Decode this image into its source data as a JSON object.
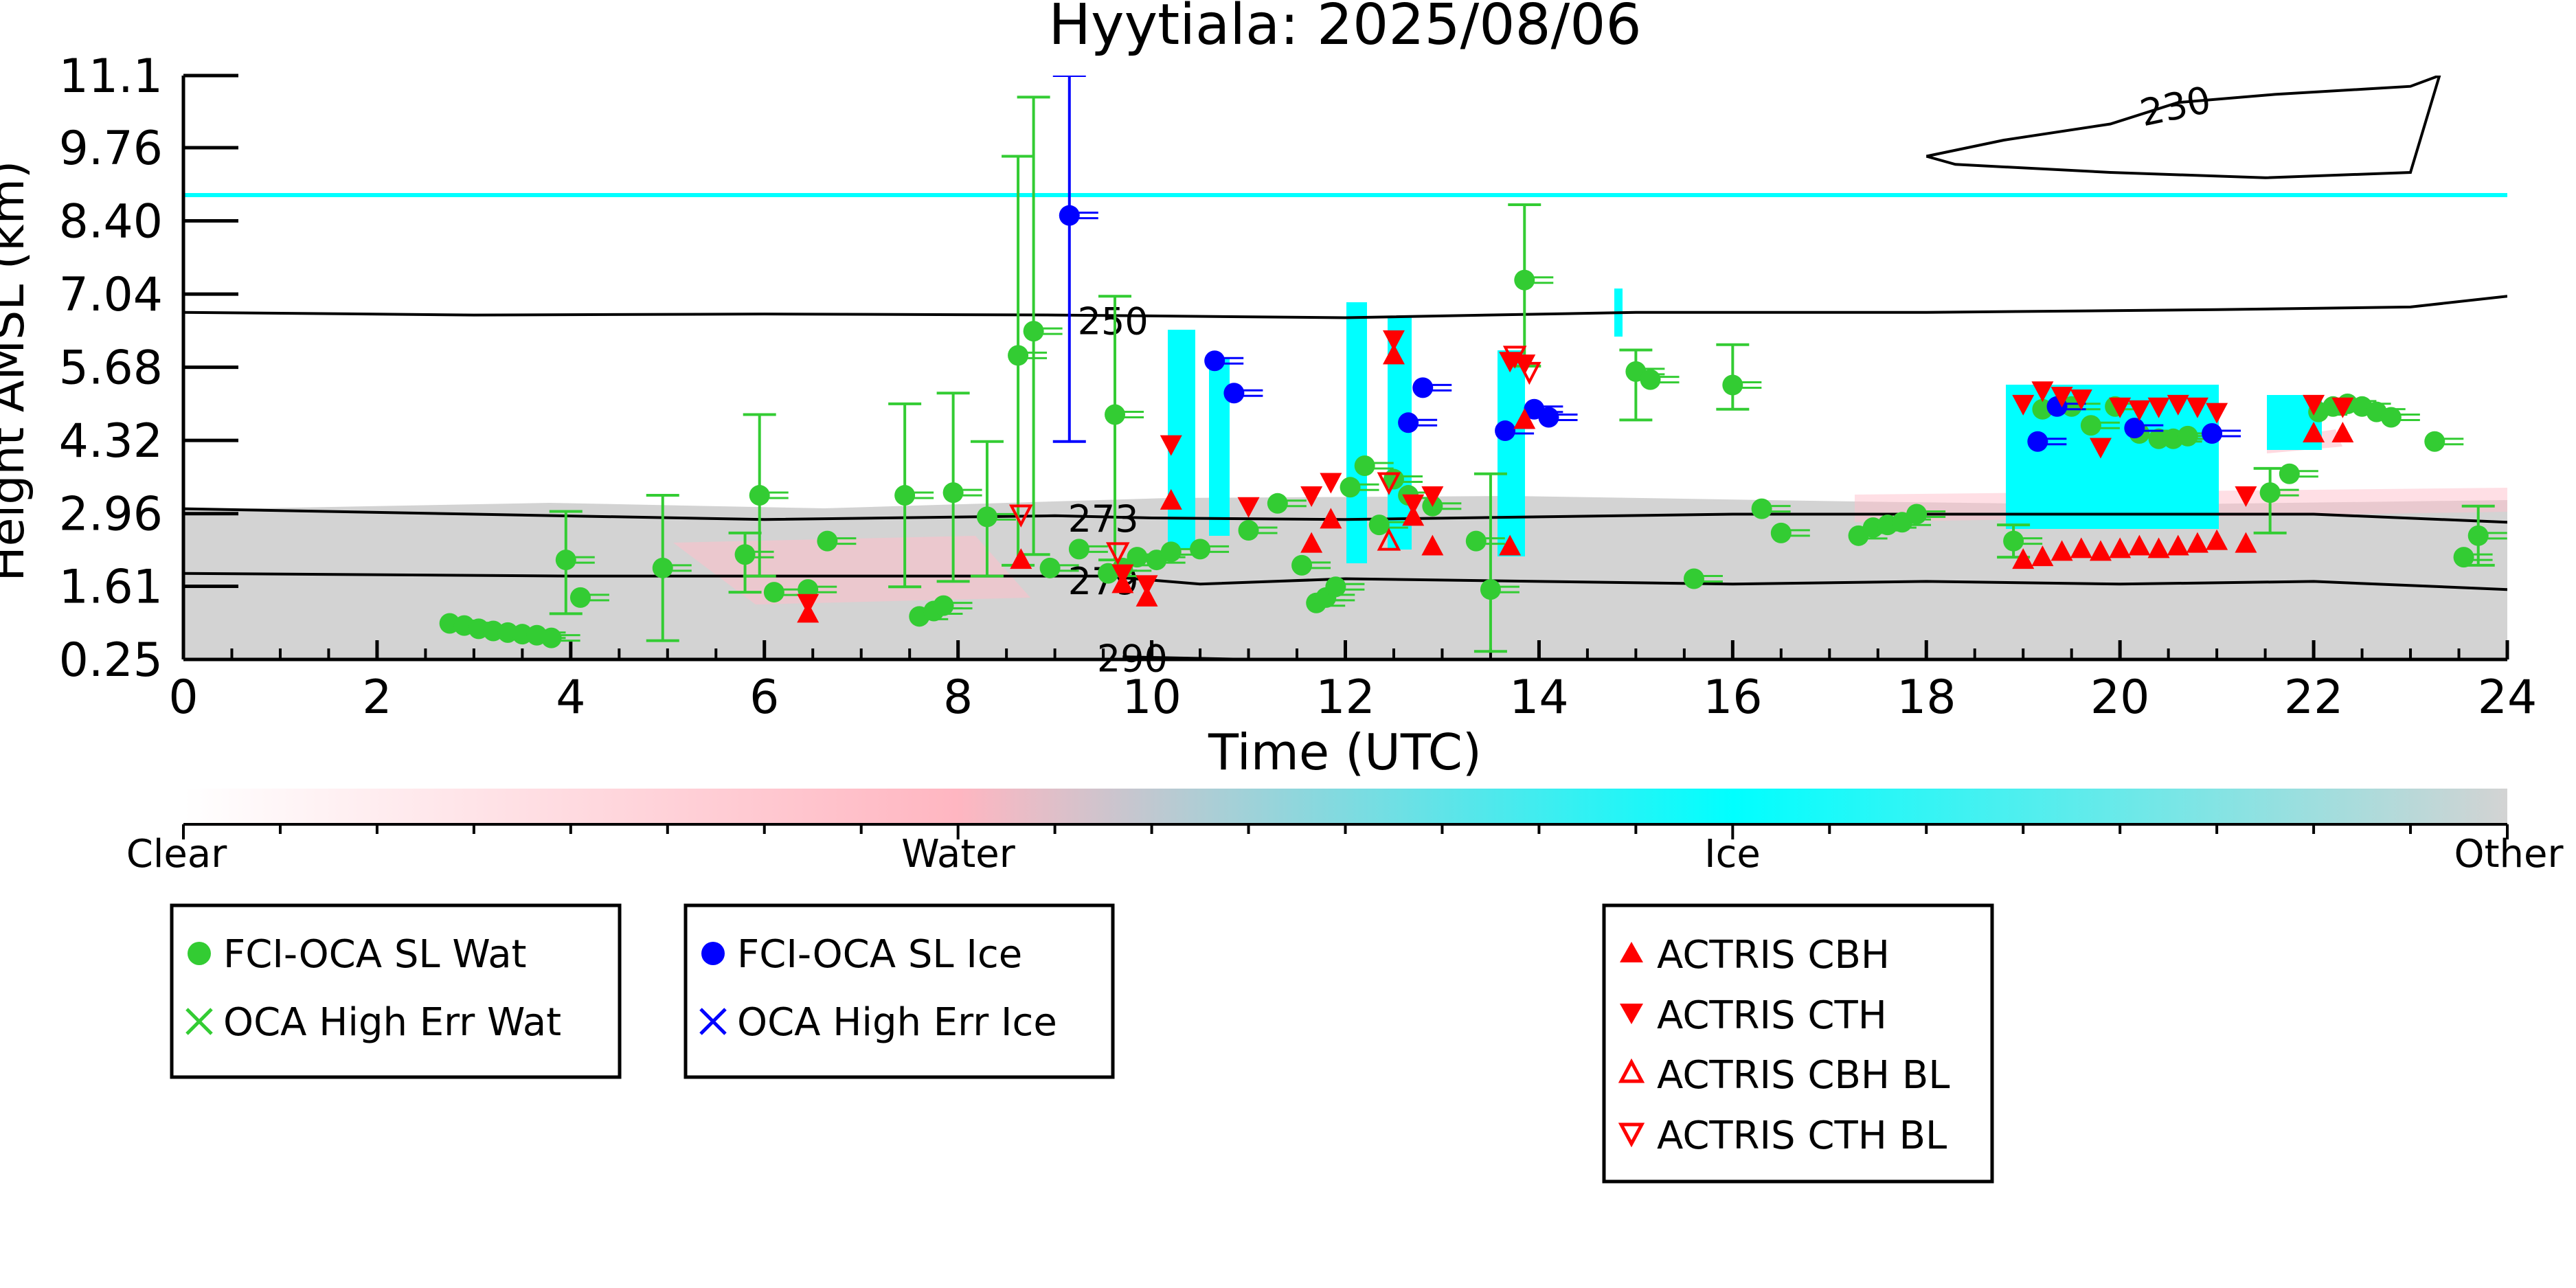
{
  "chart_data": {
    "type": "scatter",
    "title": "Hyytiala: 2025/08/06",
    "xlabel": "Time (UTC)",
    "ylabel": "Height AMSL (km)",
    "xlim": [
      0,
      24
    ],
    "ylim": [
      0.25,
      11.1
    ],
    "x_ticks": [
      0,
      2,
      4,
      6,
      8,
      10,
      12,
      14,
      16,
      18,
      20,
      22,
      24
    ],
    "y_ticks": [
      "0.25",
      "1.61",
      "2.96",
      "4.32",
      "5.68",
      "7.04",
      "8.40",
      "9.76",
      "11.1"
    ],
    "colorbar": {
      "labels": [
        "Clear",
        "Water",
        "Ice",
        "Other"
      ],
      "colors": [
        "#ffffff",
        "#ffb6c1",
        "#00ffff",
        "#d3d3d3"
      ]
    },
    "contours": [
      {
        "label": "230",
        "points": [
          [
            18.0,
            9.6
          ],
          [
            18.8,
            9.9
          ],
          [
            19.9,
            10.2
          ],
          [
            20.6,
            10.6
          ],
          [
            21.6,
            10.75
          ],
          [
            23.0,
            10.9
          ],
          [
            23.3,
            11.1
          ],
          [
            23.0,
            9.3
          ],
          [
            21.5,
            9.2
          ],
          [
            19.9,
            9.3
          ],
          [
            18.3,
            9.45
          ],
          [
            18.0,
            9.6
          ]
        ]
      },
      {
        "label": "250",
        "points": [
          [
            0,
            6.7
          ],
          [
            3,
            6.65
          ],
          [
            6,
            6.67
          ],
          [
            9,
            6.65
          ],
          [
            12,
            6.6
          ],
          [
            15,
            6.7
          ],
          [
            18,
            6.7
          ],
          [
            21,
            6.75
          ],
          [
            23,
            6.8
          ],
          [
            24,
            7.0
          ]
        ]
      },
      {
        "label": "273",
        "points": [
          [
            0,
            3.05
          ],
          [
            3,
            2.95
          ],
          [
            6,
            2.85
          ],
          [
            9,
            2.92
          ],
          [
            10,
            2.88
          ],
          [
            12,
            2.85
          ],
          [
            14,
            2.9
          ],
          [
            16,
            2.95
          ],
          [
            18,
            2.95
          ],
          [
            20,
            2.95
          ],
          [
            22,
            2.95
          ],
          [
            24,
            2.8
          ]
        ]
      },
      {
        "label": "279",
        "points": [
          [
            0,
            1.85
          ],
          [
            4,
            1.8
          ],
          [
            8,
            1.8
          ],
          [
            9.5,
            1.8
          ],
          [
            10.5,
            1.65
          ],
          [
            12,
            1.75
          ],
          [
            14,
            1.7
          ],
          [
            16,
            1.65
          ],
          [
            18,
            1.7
          ],
          [
            20,
            1.65
          ],
          [
            22,
            1.7
          ],
          [
            24,
            1.55
          ]
        ]
      },
      {
        "label": "290",
        "points": [
          [
            9.7,
            0.3
          ],
          [
            10.2,
            0.28
          ],
          [
            11.0,
            0.25
          ]
        ]
      }
    ],
    "series": [
      {
        "name": "FCI-OCA SL Wat",
        "color": "#33cc33",
        "marker": "circle",
        "points": [
          {
            "x": 2.75,
            "y": 0.92
          },
          {
            "x": 2.9,
            "y": 0.88
          },
          {
            "x": 3.05,
            "y": 0.82
          },
          {
            "x": 3.2,
            "y": 0.78
          },
          {
            "x": 3.35,
            "y": 0.75
          },
          {
            "x": 3.5,
            "y": 0.72
          },
          {
            "x": 3.65,
            "y": 0.7
          },
          {
            "x": 3.8,
            "y": 0.65
          },
          {
            "x": 3.95,
            "y": 2.1,
            "err": [
              1.1,
              3.0
            ]
          },
          {
            "x": 4.1,
            "y": 1.4
          },
          {
            "x": 4.95,
            "y": 1.95,
            "err": [
              0.6,
              3.3
            ]
          },
          {
            "x": 5.8,
            "y": 2.2,
            "err": [
              1.5,
              2.6
            ]
          },
          {
            "x": 5.95,
            "y": 3.3,
            "err": [
              1.8,
              4.8
            ]
          },
          {
            "x": 6.1,
            "y": 1.5
          },
          {
            "x": 6.45,
            "y": 1.55
          },
          {
            "x": 6.65,
            "y": 2.45
          },
          {
            "x": 7.45,
            "y": 3.3,
            "err": [
              1.6,
              5.0
            ]
          },
          {
            "x": 7.6,
            "y": 1.05
          },
          {
            "x": 7.75,
            "y": 1.15
          },
          {
            "x": 7.85,
            "y": 1.25
          },
          {
            "x": 7.95,
            "y": 3.35,
            "err": [
              1.7,
              5.2
            ]
          },
          {
            "x": 8.3,
            "y": 2.9,
            "err": [
              1.8,
              4.3
            ]
          },
          {
            "x": 8.62,
            "y": 5.9,
            "err": [
              2.0,
              9.6
            ]
          },
          {
            "x": 8.78,
            "y": 6.35,
            "err": [
              2.2,
              10.7
            ]
          },
          {
            "x": 8.95,
            "y": 1.95
          },
          {
            "x": 9.25,
            "y": 2.3
          },
          {
            "x": 9.55,
            "y": 1.85
          },
          {
            "x": 9.62,
            "y": 4.8,
            "err": [
              2.1,
              7.0
            ]
          },
          {
            "x": 9.7,
            "y": 1.95
          },
          {
            "x": 9.85,
            "y": 2.15
          },
          {
            "x": 10.05,
            "y": 2.1
          },
          {
            "x": 10.2,
            "y": 2.25
          },
          {
            "x": 10.5,
            "y": 2.3
          },
          {
            "x": 11.0,
            "y": 2.65
          },
          {
            "x": 11.3,
            "y": 3.15
          },
          {
            "x": 11.55,
            "y": 2.0
          },
          {
            "x": 11.7,
            "y": 1.3
          },
          {
            "x": 11.8,
            "y": 1.4
          },
          {
            "x": 11.9,
            "y": 1.6
          },
          {
            "x": 12.05,
            "y": 3.45
          },
          {
            "x": 12.2,
            "y": 3.85
          },
          {
            "x": 12.35,
            "y": 2.75
          },
          {
            "x": 12.5,
            "y": 3.6
          },
          {
            "x": 12.65,
            "y": 3.3
          },
          {
            "x": 12.9,
            "y": 3.1
          },
          {
            "x": 13.35,
            "y": 2.45
          },
          {
            "x": 13.5,
            "y": 1.55,
            "err": [
              0.4,
              3.7
            ]
          },
          {
            "x": 13.85,
            "y": 7.3,
            "err": [
              5.7,
              8.7
            ]
          },
          {
            "x": 15.0,
            "y": 5.6,
            "err": [
              4.7,
              6.0
            ]
          },
          {
            "x": 15.15,
            "y": 5.45
          },
          {
            "x": 15.6,
            "y": 1.75
          },
          {
            "x": 16.0,
            "y": 5.35,
            "err": [
              4.9,
              6.1
            ]
          },
          {
            "x": 16.3,
            "y": 3.05
          },
          {
            "x": 16.5,
            "y": 2.6
          },
          {
            "x": 17.3,
            "y": 2.55
          },
          {
            "x": 17.45,
            "y": 2.7
          },
          {
            "x": 17.6,
            "y": 2.75
          },
          {
            "x": 17.75,
            "y": 2.8
          },
          {
            "x": 17.9,
            "y": 2.95
          },
          {
            "x": 18.9,
            "y": 2.45,
            "err": [
              2.15,
              2.75
            ]
          },
          {
            "x": 19.2,
            "y": 4.9
          },
          {
            "x": 19.5,
            "y": 4.95
          },
          {
            "x": 19.7,
            "y": 4.6
          },
          {
            "x": 19.95,
            "y": 4.95
          },
          {
            "x": 20.2,
            "y": 4.45
          },
          {
            "x": 20.4,
            "y": 4.35
          },
          {
            "x": 20.55,
            "y": 4.35
          },
          {
            "x": 20.7,
            "y": 4.4
          },
          {
            "x": 21.55,
            "y": 3.35,
            "err": [
              2.6,
              3.8
            ]
          },
          {
            "x": 21.75,
            "y": 3.7
          },
          {
            "x": 22.05,
            "y": 4.85
          },
          {
            "x": 22.2,
            "y": 4.95
          },
          {
            "x": 22.35,
            "y": 5.0
          },
          {
            "x": 22.5,
            "y": 4.95
          },
          {
            "x": 22.65,
            "y": 4.85
          },
          {
            "x": 22.8,
            "y": 4.75
          },
          {
            "x": 23.25,
            "y": 4.3
          },
          {
            "x": 23.55,
            "y": 2.15
          },
          {
            "x": 23.7,
            "y": 2.55,
            "err": [
              2.0,
              3.1
            ]
          }
        ]
      },
      {
        "name": "FCI-OCA SL Ice",
        "color": "#0000ff",
        "marker": "circle",
        "points": [
          {
            "x": 9.15,
            "y": 8.5,
            "err": [
              4.3,
              11.1
            ]
          },
          {
            "x": 10.65,
            "y": 5.8
          },
          {
            "x": 10.85,
            "y": 5.2
          },
          {
            "x": 12.65,
            "y": 4.65
          },
          {
            "x": 12.8,
            "y": 5.3
          },
          {
            "x": 13.65,
            "y": 4.5
          },
          {
            "x": 13.95,
            "y": 4.9
          },
          {
            "x": 14.1,
            "y": 4.75
          },
          {
            "x": 19.15,
            "y": 4.3
          },
          {
            "x": 19.35,
            "y": 4.95
          },
          {
            "x": 20.15,
            "y": 4.55
          },
          {
            "x": 20.95,
            "y": 4.45
          }
        ]
      },
      {
        "name": "OCA High Err Wat",
        "color": "#33cc33",
        "marker": "x",
        "points": []
      },
      {
        "name": "OCA High Err Ice",
        "color": "#0000ff",
        "marker": "x",
        "points": []
      },
      {
        "name": "ACTRIS CBH",
        "color": "#ff0000",
        "marker": "triangle-up",
        "points": [
          {
            "x": 6.45,
            "y": 1.1
          },
          {
            "x": 8.65,
            "y": 2.1
          },
          {
            "x": 9.7,
            "y": 1.65
          },
          {
            "x": 9.95,
            "y": 1.4
          },
          {
            "x": 10.2,
            "y": 3.2
          },
          {
            "x": 11.65,
            "y": 2.4
          },
          {
            "x": 11.85,
            "y": 2.85
          },
          {
            "x": 12.5,
            "y": 5.9
          },
          {
            "x": 12.7,
            "y": 2.9
          },
          {
            "x": 12.9,
            "y": 2.35
          },
          {
            "x": 13.7,
            "y": 2.35
          },
          {
            "x": 13.85,
            "y": 4.7
          },
          {
            "x": 19.0,
            "y": 2.1
          },
          {
            "x": 19.2,
            "y": 2.15
          },
          {
            "x": 19.4,
            "y": 2.25
          },
          {
            "x": 19.6,
            "y": 2.3
          },
          {
            "x": 19.8,
            "y": 2.25
          },
          {
            "x": 20.0,
            "y": 2.3
          },
          {
            "x": 20.2,
            "y": 2.35
          },
          {
            "x": 20.4,
            "y": 2.3
          },
          {
            "x": 20.6,
            "y": 2.35
          },
          {
            "x": 20.8,
            "y": 2.4
          },
          {
            "x": 21.0,
            "y": 2.45
          },
          {
            "x": 21.3,
            "y": 2.4
          },
          {
            "x": 22.0,
            "y": 4.45
          },
          {
            "x": 22.3,
            "y": 4.45
          }
        ]
      },
      {
        "name": "ACTRIS CTH",
        "color": "#ff0000",
        "marker": "triangle-down",
        "points": [
          {
            "x": 6.45,
            "y": 1.3
          },
          {
            "x": 9.7,
            "y": 1.85
          },
          {
            "x": 9.95,
            "y": 1.65
          },
          {
            "x": 10.2,
            "y": 4.25
          },
          {
            "x": 11.0,
            "y": 3.1
          },
          {
            "x": 11.65,
            "y": 3.3
          },
          {
            "x": 11.85,
            "y": 3.55
          },
          {
            "x": 12.5,
            "y": 6.2
          },
          {
            "x": 12.7,
            "y": 3.15
          },
          {
            "x": 12.9,
            "y": 3.3
          },
          {
            "x": 13.7,
            "y": 5.8
          },
          {
            "x": 13.85,
            "y": 5.75
          },
          {
            "x": 19.0,
            "y": 5.0
          },
          {
            "x": 19.2,
            "y": 5.25
          },
          {
            "x": 19.4,
            "y": 5.15
          },
          {
            "x": 19.6,
            "y": 5.1
          },
          {
            "x": 19.8,
            "y": 4.2
          },
          {
            "x": 20.0,
            "y": 4.95
          },
          {
            "x": 20.2,
            "y": 4.9
          },
          {
            "x": 20.4,
            "y": 4.95
          },
          {
            "x": 20.6,
            "y": 5.0
          },
          {
            "x": 20.8,
            "y": 4.95
          },
          {
            "x": 21.0,
            "y": 4.85
          },
          {
            "x": 21.3,
            "y": 3.3
          },
          {
            "x": 22.0,
            "y": 5.0
          },
          {
            "x": 22.3,
            "y": 4.95
          }
        ]
      },
      {
        "name": "ACTRIS CBH BL",
        "color": "#ff0000",
        "marker": "triangle-up-open",
        "points": [
          {
            "x": 12.45,
            "y": 2.45
          }
        ]
      },
      {
        "name": "ACTRIS CTH BL",
        "color": "#ff0000",
        "marker": "triangle-down-open",
        "points": [
          {
            "x": 8.65,
            "y": 2.95
          },
          {
            "x": 9.65,
            "y": 2.25
          },
          {
            "x": 12.45,
            "y": 3.55
          },
          {
            "x": 13.75,
            "y": 5.9
          },
          {
            "x": 13.9,
            "y": 5.6
          }
        ]
      }
    ]
  }
}
